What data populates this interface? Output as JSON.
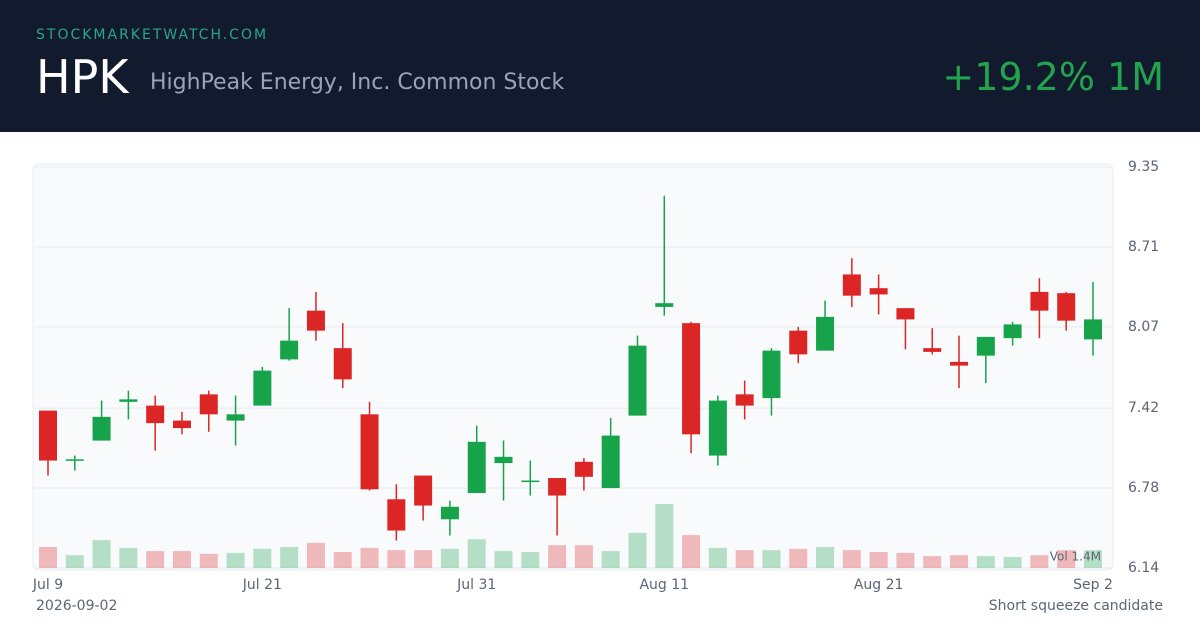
{
  "header": {
    "site": "STOCKMARKETWATCH.COM",
    "ticker": "HPK",
    "name": "HighPeak Energy, Inc. Common Stock",
    "change": "+19.2% 1M"
  },
  "chart_data": {
    "type": "candlestick",
    "categories": [
      "Jul 9",
      null,
      null,
      null,
      null,
      null,
      null,
      null,
      "Jul 21",
      null,
      null,
      null,
      null,
      null,
      null,
      null,
      "Jul 31",
      null,
      null,
      null,
      null,
      null,
      null,
      "Aug 11",
      null,
      null,
      null,
      null,
      null,
      null,
      null,
      "Aug 21",
      null,
      null,
      null,
      null,
      null,
      null,
      null,
      "Sep 2"
    ],
    "open": [
      7.4,
      7.0,
      7.16,
      7.47,
      7.44,
      7.32,
      7.53,
      7.32,
      7.44,
      7.81,
      8.2,
      7.9,
      7.37,
      6.69,
      6.88,
      6.53,
      6.74,
      6.98,
      6.83,
      6.86,
      6.99,
      6.78,
      7.36,
      8.23,
      8.1,
      7.04,
      7.53,
      7.5,
      8.04,
      7.88,
      8.49,
      8.38,
      8.22,
      7.9,
      7.79,
      7.84,
      7.98,
      8.35,
      8.34,
      7.97
    ],
    "high": [
      7.4,
      7.04,
      7.48,
      7.56,
      7.52,
      7.39,
      7.56,
      7.52,
      7.75,
      8.22,
      8.35,
      8.1,
      7.47,
      6.81,
      6.88,
      6.68,
      7.28,
      7.16,
      7.0,
      6.86,
      7.02,
      7.34,
      8.0,
      9.12,
      8.11,
      7.52,
      7.64,
      7.9,
      8.07,
      8.28,
      8.62,
      8.49,
      8.22,
      8.06,
      8.0,
      7.99,
      8.11,
      8.46,
      8.35,
      8.43
    ],
    "low": [
      6.88,
      6.92,
      7.16,
      7.33,
      7.08,
      7.21,
      7.23,
      7.12,
      7.44,
      7.8,
      7.96,
      7.58,
      6.76,
      6.36,
      6.52,
      6.4,
      6.74,
      6.68,
      6.72,
      6.4,
      6.76,
      6.78,
      7.36,
      8.16,
      7.06,
      6.96,
      7.33,
      7.36,
      7.78,
      7.88,
      8.23,
      8.17,
      7.89,
      7.85,
      7.58,
      7.62,
      7.92,
      7.98,
      8.04,
      7.84
    ],
    "close": [
      7.0,
      7.01,
      7.35,
      7.49,
      7.3,
      7.26,
      7.37,
      7.37,
      7.72,
      7.96,
      8.04,
      7.65,
      6.77,
      6.44,
      6.64,
      6.63,
      7.15,
      7.03,
      6.84,
      6.72,
      6.87,
      7.2,
      7.92,
      8.26,
      7.21,
      7.48,
      7.44,
      7.88,
      7.85,
      8.15,
      8.32,
      8.33,
      8.13,
      7.87,
      7.76,
      7.99,
      8.09,
      8.2,
      8.12,
      8.13
    ],
    "volume": [
      0.46,
      0.28,
      0.61,
      0.44,
      0.37,
      0.37,
      0.31,
      0.33,
      0.42,
      0.46,
      0.55,
      0.35,
      0.44,
      0.39,
      0.39,
      0.42,
      0.63,
      0.37,
      0.35,
      0.5,
      0.5,
      0.37,
      0.77,
      1.4,
      0.72,
      0.44,
      0.39,
      0.39,
      0.42,
      0.46,
      0.39,
      0.35,
      0.33,
      0.26,
      0.28,
      0.26,
      0.24,
      0.28,
      0.39,
      0.39
    ],
    "volume_label": "Vol 1.4M",
    "up_color": "#16a34a",
    "down_color": "#dc2626",
    "ylim": [
      6.14,
      9.35
    ],
    "yticks": [
      9.35,
      8.71,
      8.07,
      7.42,
      6.78,
      6.14
    ],
    "grid": true
  },
  "footer": {
    "date": "2026-09-02",
    "note": "Short squeeze candidate"
  }
}
